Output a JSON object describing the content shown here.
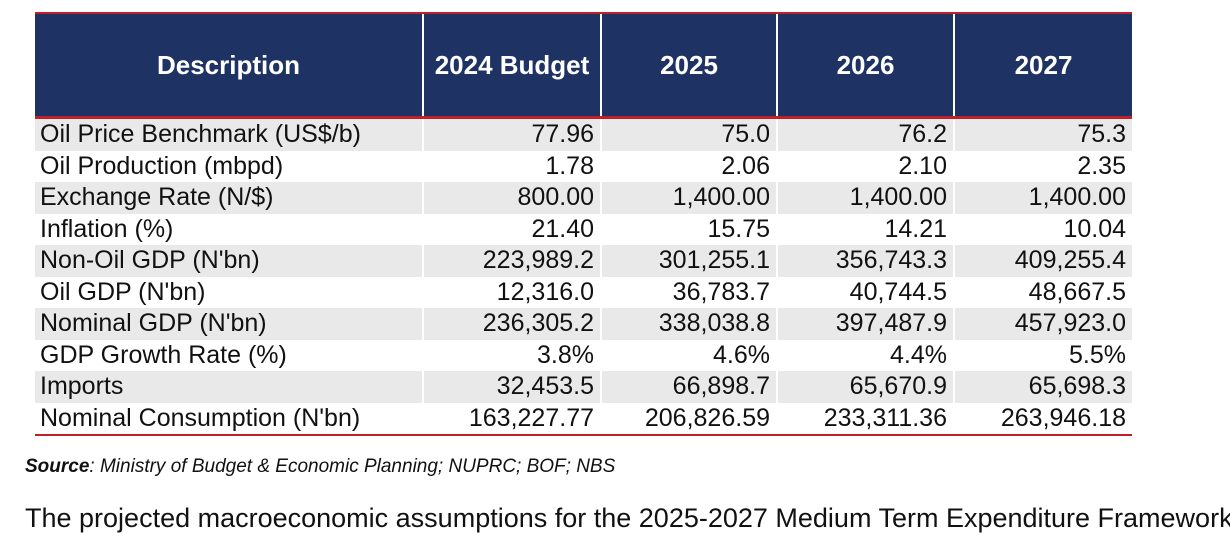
{
  "table": {
    "headers": [
      "Description",
      "2024 Budget",
      "2025",
      "2026",
      "2027"
    ],
    "rows": [
      [
        "Oil Price Benchmark (US$/b)",
        "77.96",
        "75.0",
        "76.2",
        "75.3"
      ],
      [
        "Oil Production (mbpd)",
        "1.78",
        "2.06",
        "2.10",
        "2.35"
      ],
      [
        "Exchange Rate (N/$)",
        "800.00",
        "1,400.00",
        "1,400.00",
        "1,400.00"
      ],
      [
        "Inflation (%)",
        "21.40",
        "15.75",
        "14.21",
        "10.04"
      ],
      [
        "Non-Oil GDP (N'bn)",
        "223,989.2",
        "301,255.1",
        "356,743.3",
        "409,255.4"
      ],
      [
        "Oil GDP (N'bn)",
        "12,316.0",
        "36,783.7",
        "40,744.5",
        "48,667.5"
      ],
      [
        "Nominal GDP (N'bn)",
        "236,305.2",
        "338,038.8",
        "397,487.9",
        "457,923.0"
      ],
      [
        "GDP Growth Rate (%)",
        "3.8%",
        "4.6%",
        "4.4%",
        "5.5%"
      ],
      [
        "Imports",
        "32,453.5",
        "66,898.7",
        "65,670.9",
        "65,698.3"
      ],
      [
        "Nominal Consumption (N'bn)",
        "163,227.77",
        "206,826.59",
        "233,311.36",
        "263,946.18"
      ]
    ]
  },
  "source": {
    "label": "Source",
    "text": ": Ministry of Budget & Economic Planning; NUPRC; BOF; NBS"
  },
  "body_text": "The projected macroeconomic assumptions for the 2025-2027 Medium Term Expenditure Framework",
  "colors": {
    "header_bg": "#1f3264",
    "accent_red": "#c0202a",
    "stripe": "#e9e9e9"
  }
}
